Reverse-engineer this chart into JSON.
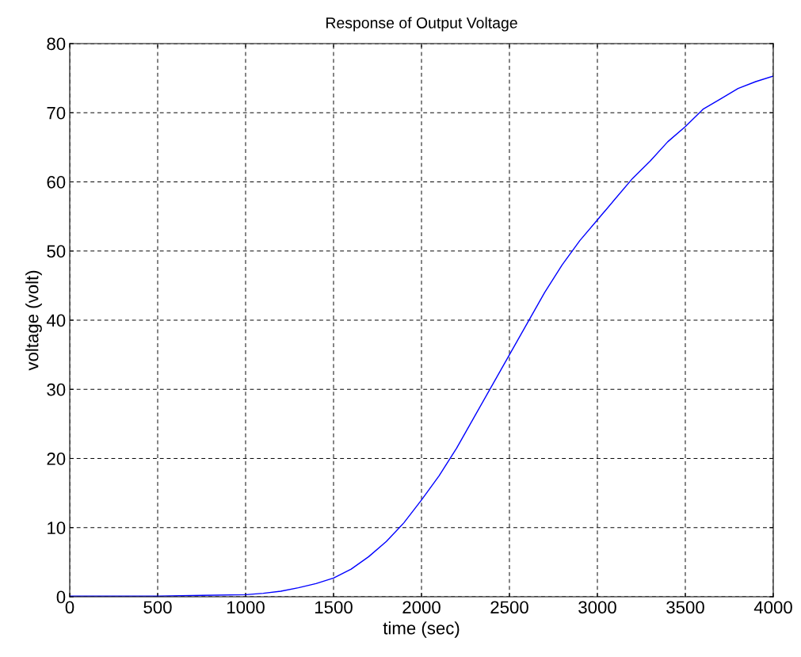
{
  "chart_data": {
    "type": "line",
    "title": "Response of Output Voltage",
    "xlabel": "time (sec)",
    "ylabel": "voltage (volt)",
    "x": [
      0,
      500,
      1000,
      1100,
      1200,
      1300,
      1400,
      1500,
      1600,
      1700,
      1800,
      1900,
      2000,
      2100,
      2200,
      2300,
      2400,
      2500,
      2600,
      2700,
      2800,
      2900,
      3000,
      3100,
      3200,
      3300,
      3400,
      3500,
      3600,
      3700,
      3800,
      3900,
      4000
    ],
    "series": [
      {
        "color": "#0000ff",
        "values": [
          0.1,
          0.1,
          0.3,
          0.5,
          0.8,
          1.3,
          1.9,
          2.7,
          4,
          5.8,
          8,
          10.7,
          14,
          17.5,
          21.5,
          26,
          30.5,
          35,
          39.5,
          44,
          48,
          51.5,
          54.5,
          57.5,
          60.5,
          63,
          65.8,
          68,
          70.5,
          72,
          73.5,
          74.5,
          75.3
        ]
      }
    ],
    "xlim": [
      0,
      4000
    ],
    "ylim": [
      0,
      80
    ],
    "xticks": [
      0,
      500,
      1000,
      1500,
      2000,
      2500,
      3000,
      3500,
      4000
    ],
    "yticks": [
      0,
      10,
      20,
      30,
      40,
      50,
      60,
      70,
      80
    ],
    "grid": true,
    "line_style": "solid",
    "marker": "none"
  }
}
